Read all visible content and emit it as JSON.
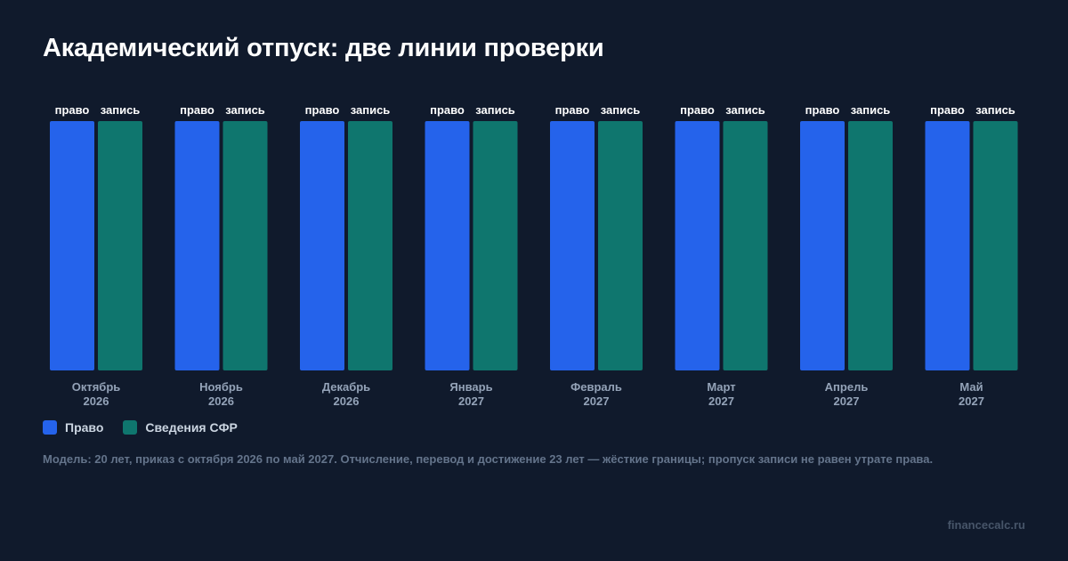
{
  "title": "Академический отпуск: две линии проверки",
  "note": "Модель: 20 лет, приказ с октября 2026 по май 2027. Отчисление, перевод и достижение 23 лет — жёсткие границы; пропуск записи не равен утрате права.",
  "brand": "financecalc.ru",
  "chart_data": {
    "type": "bar",
    "title": "Академический отпуск: две линии проверки",
    "categories": [
      [
        "Октябрь",
        "2026"
      ],
      [
        "Ноябрь",
        "2026"
      ],
      [
        "Декабрь",
        "2026"
      ],
      [
        "Январь",
        "2027"
      ],
      [
        "Февраль",
        "2027"
      ],
      [
        "Март",
        "2027"
      ],
      [
        "Апрель",
        "2027"
      ],
      [
        "Май",
        "2027"
      ]
    ],
    "series": [
      {
        "name": "Право",
        "bar_label": "право",
        "color": "#2563eb",
        "values": [
          1,
          1,
          1,
          1,
          1,
          1,
          1,
          1
        ]
      },
      {
        "name": "Сведения СФР",
        "bar_label": "запись",
        "color": "#0f766e",
        "values": [
          1,
          1,
          1,
          1,
          1,
          1,
          1,
          1
        ]
      }
    ],
    "ylim": [
      0,
      1
    ],
    "grid": false,
    "legend": "bottom-left"
  }
}
